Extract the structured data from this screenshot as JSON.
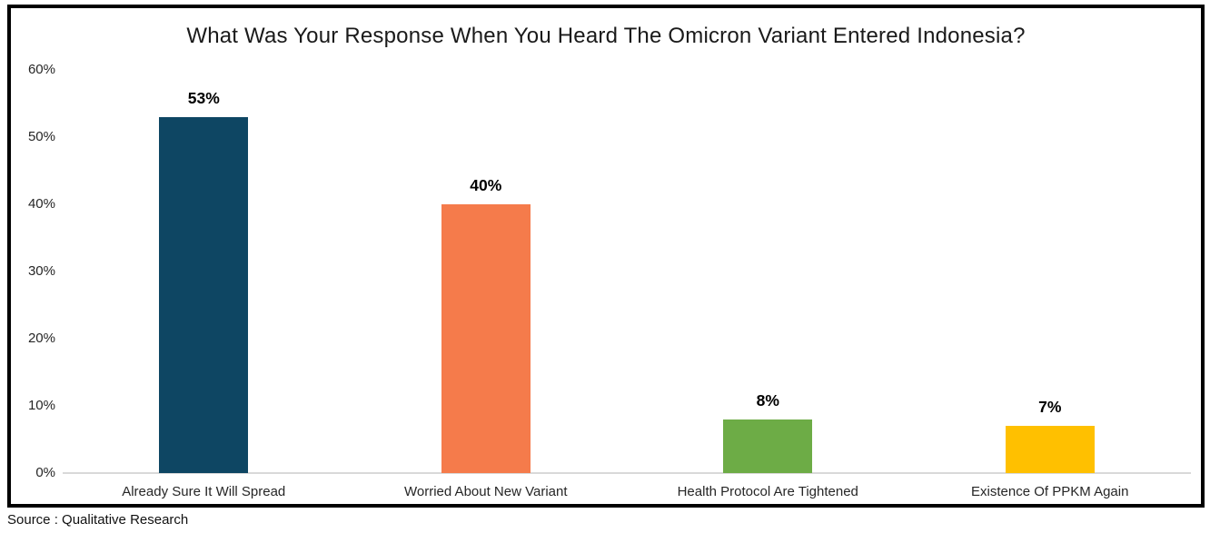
{
  "source_note": "Source : Qualitative Research",
  "chart_data": {
    "type": "bar",
    "title": "What Was Your Response When You Heard The Omicron Variant Entered Indonesia?",
    "categories": [
      "Already Sure It Will Spread",
      "Worried About New Variant",
      "Health Protocol Are Tightened",
      "Existence Of PPKM Again"
    ],
    "values": [
      53,
      40,
      8,
      7
    ],
    "value_labels": [
      "53%",
      "40%",
      "8%",
      "7%"
    ],
    "bar_colors": [
      "#0e4663",
      "#f57b4b",
      "#6dac46",
      "#ffc000"
    ],
    "xlabel": "",
    "ylabel": "",
    "ylim": [
      0,
      60
    ],
    "ytick_values": [
      0,
      10,
      20,
      30,
      40,
      50,
      60
    ],
    "ytick_labels": [
      "0%",
      "10%",
      "20%",
      "30%",
      "40%",
      "50%",
      "60%"
    ],
    "grid": false,
    "legend": false,
    "axis_line_color": "#d9d9d9",
    "border_color": "#000000"
  }
}
